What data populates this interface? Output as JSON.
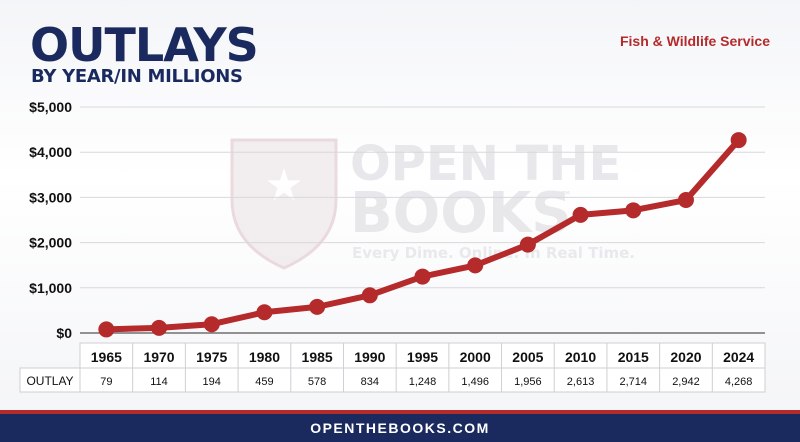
{
  "header": {
    "title": "OUTLAYS",
    "subtitle": "BY YEAR/IN MILLIONS",
    "agency": "Fish & Wildlife Service"
  },
  "watermark": {
    "line1": "OPEN THE",
    "line2": "BOOKS",
    "tm": "™",
    "tagline": "Every Dime. Online. In Real Time."
  },
  "footer": {
    "text": "OPENTHEBOOKS.COM"
  },
  "table": {
    "row_label": "OUTLAY"
  },
  "colors": {
    "line": "#b52a2a",
    "navy": "#1b2a5e"
  },
  "chart_data": {
    "type": "line",
    "x": [
      "1965",
      "1970",
      "1975",
      "1980",
      "1985",
      "1990",
      "1995",
      "2000",
      "2005",
      "2010",
      "2015",
      "2020",
      "2024"
    ],
    "values": [
      79,
      114,
      194,
      459,
      578,
      834,
      1248,
      1496,
      1956,
      2613,
      2714,
      2942,
      4268
    ],
    "value_labels": [
      "79",
      "114",
      "194",
      "459",
      "578",
      "834",
      "1,248",
      "1,496",
      "1,956",
      "2,613",
      "2,714",
      "2,942",
      "4,268"
    ],
    "yticks": [
      0,
      1000,
      2000,
      3000,
      4000,
      5000
    ],
    "ytick_labels": [
      "$0",
      "$1,000",
      "$2,000",
      "$3,000",
      "$4,000",
      "$5,000"
    ],
    "ylim": [
      0,
      5000
    ],
    "grid": true,
    "title": "OUTLAYS",
    "ylabel": "",
    "xlabel": ""
  }
}
